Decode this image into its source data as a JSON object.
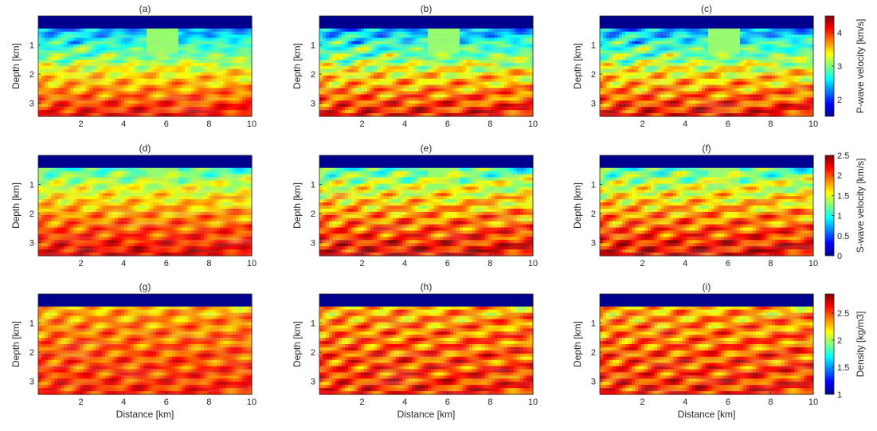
{
  "chart_data": {
    "type": "heatmap",
    "grid": {
      "rows": 3,
      "cols": 3
    },
    "xlabel": "Distance [km]",
    "ylabel": "Depth [km]",
    "xlim": [
      0,
      10
    ],
    "ylim": [
      0,
      3.45
    ],
    "y_reversed": true,
    "xticks": [
      2,
      4,
      6,
      8,
      10
    ],
    "yticks": [
      1,
      2,
      3
    ],
    "water_layer_depth_km": 0.45,
    "panels": [
      {
        "label": "(a)",
        "row": 0,
        "col": 0,
        "variant": "initial",
        "field": "vp"
      },
      {
        "label": "(b)",
        "row": 0,
        "col": 1,
        "variant": "inverted",
        "field": "vp"
      },
      {
        "label": "(c)",
        "row": 0,
        "col": 2,
        "variant": "true",
        "field": "vp"
      },
      {
        "label": "(d)",
        "row": 1,
        "col": 0,
        "variant": "initial",
        "field": "vs"
      },
      {
        "label": "(e)",
        "row": 1,
        "col": 1,
        "variant": "inverted",
        "field": "vs"
      },
      {
        "label": "(f)",
        "row": 1,
        "col": 2,
        "variant": "true",
        "field": "vs"
      },
      {
        "label": "(g)",
        "row": 2,
        "col": 0,
        "variant": "initial",
        "field": "rho"
      },
      {
        "label": "(h)",
        "row": 2,
        "col": 1,
        "variant": "inverted",
        "field": "rho"
      },
      {
        "label": "(i)",
        "row": 2,
        "col": 2,
        "variant": "true",
        "field": "rho"
      }
    ],
    "colorbars": [
      {
        "field": "vp",
        "row": 0,
        "label": "P-wave velocity [km/s]",
        "range": [
          1.5,
          4.5
        ],
        "ticks": [
          2,
          3,
          4
        ]
      },
      {
        "field": "vs",
        "row": 1,
        "label": "S-wave velocity [km/s]",
        "range": [
          0,
          2.5
        ],
        "ticks": [
          0,
          0.5,
          1,
          1.5,
          2,
          2.5
        ]
      },
      {
        "field": "rho",
        "row": 2,
        "label": "Density [kg/m3]",
        "range": [
          1,
          2.85
        ],
        "ticks": [
          1,
          1.5,
          2,
          2.5
        ]
      }
    ],
    "colormap": "jet"
  }
}
